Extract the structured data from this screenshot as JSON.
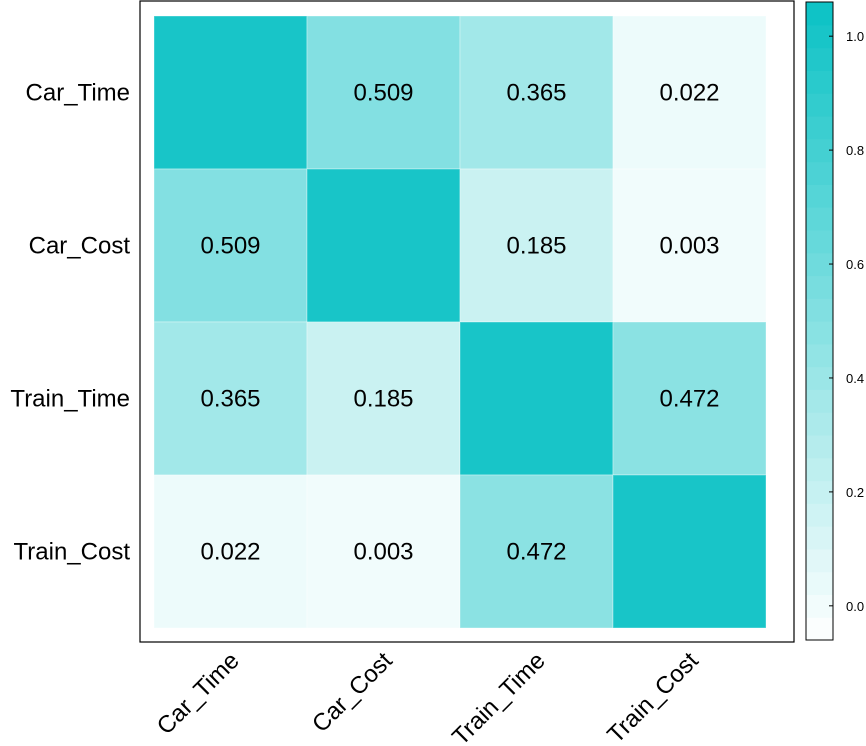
{
  "chart_data": {
    "type": "heatmap",
    "title": "",
    "rows": [
      "Car_Time",
      "Car_Cost",
      "Train_Time",
      "Train_Cost"
    ],
    "columns": [
      "Car_Time",
      "Car_Cost",
      "Train_Time",
      "Train_Cost"
    ],
    "values": [
      [
        1.0,
        0.509,
        0.365,
        0.022
      ],
      [
        0.509,
        1.0,
        0.185,
        0.003
      ],
      [
        0.365,
        0.185,
        1.0,
        0.472
      ],
      [
        0.022,
        0.003,
        0.472,
        1.0
      ]
    ],
    "cell_labels": [
      [
        "",
        "0.509",
        "0.365",
        "0.022"
      ],
      [
        "0.509",
        "",
        "0.185",
        "0.003"
      ],
      [
        "0.365",
        "0.185",
        "",
        "0.472"
      ],
      [
        "0.022",
        "0.003",
        "0.472",
        ""
      ]
    ],
    "colorbar": {
      "range": [
        -0.06,
        1.06
      ],
      "ticks": [
        0.0,
        0.2,
        0.4,
        0.6,
        0.8,
        1.0
      ],
      "tick_labels": [
        "0.0",
        "0.2",
        "0.4",
        "0.6",
        "0.8",
        "1.0"
      ],
      "low_color": "#ffffff",
      "high_color": "#0bc2c5"
    },
    "grid": false,
    "legend": "right"
  }
}
